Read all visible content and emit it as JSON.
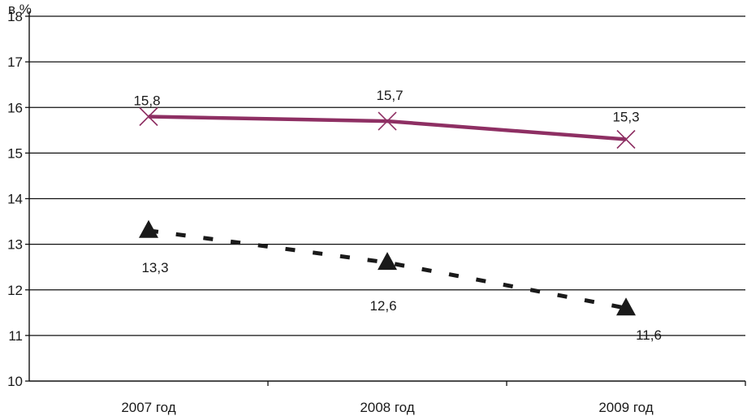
{
  "chart_data": {
    "type": "line",
    "unit_label": "в %",
    "categories": [
      "2007 год",
      "2008 год",
      "2009 год"
    ],
    "ylim": [
      10,
      18
    ],
    "yticks": [
      "10",
      "11",
      "12",
      "13",
      "14",
      "15",
      "16",
      "17",
      "18"
    ],
    "grid": true,
    "legend": "none",
    "series": [
      {
        "values": [
          15.8,
          15.7,
          15.3
        ],
        "labels": [
          "15,8",
          "15,7",
          "15,3"
        ],
        "color": "#8e2f63",
        "marker": "x",
        "style": "solid"
      },
      {
        "values": [
          13.3,
          12.6,
          11.6
        ],
        "labels": [
          "13,3",
          "12,6",
          "11,6"
        ],
        "color": "#1a1a1a",
        "marker": "triangle",
        "style": "dashed"
      }
    ]
  }
}
